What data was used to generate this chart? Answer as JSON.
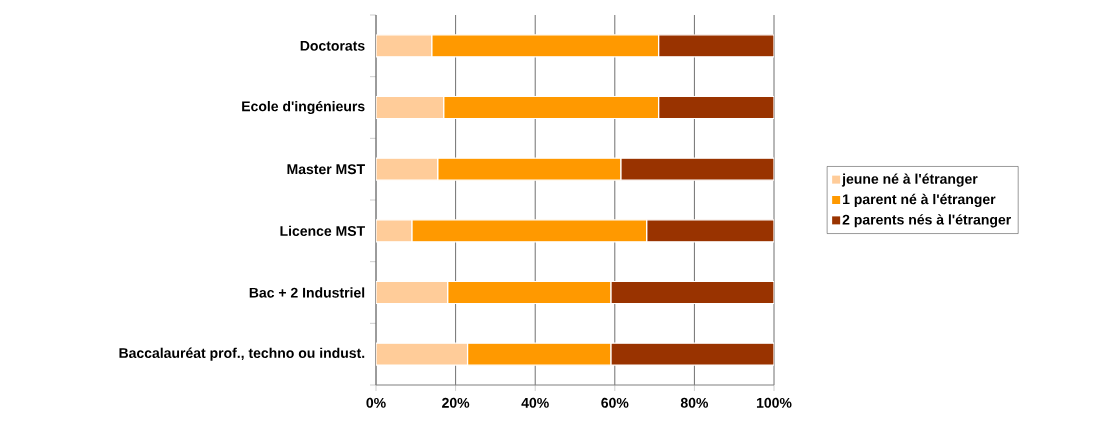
{
  "chart_data": {
    "type": "bar",
    "orientation": "horizontal",
    "stacked": true,
    "categories": [
      "Doctorats",
      "Ecole d'ingénieurs",
      "Master MST",
      "Licence MST",
      "Bac + 2 Industriel",
      "Baccalauréat prof., techno ou indust."
    ],
    "series": [
      {
        "name": "jeune né à l'étranger",
        "color": "#ffcc99",
        "values": [
          14,
          17,
          15.5,
          9,
          18,
          23
        ]
      },
      {
        "name": "1 parent né à l'étranger",
        "color": "#ff9900",
        "values": [
          57,
          54,
          46,
          59,
          41,
          36
        ]
      },
      {
        "name": "2 parents nés à l'étranger",
        "color": "#993300",
        "values": [
          29,
          29,
          38.5,
          32,
          41,
          41
        ]
      }
    ],
    "xlim": [
      0,
      100
    ],
    "xticks": [
      {
        "value": 0,
        "label": "0%"
      },
      {
        "value": 20,
        "label": "20%"
      },
      {
        "value": 40,
        "label": "40%"
      },
      {
        "value": 60,
        "label": "60%"
      },
      {
        "value": 80,
        "label": "80%"
      },
      {
        "value": 100,
        "label": "100%"
      }
    ],
    "grid": "x",
    "legend": "right"
  }
}
